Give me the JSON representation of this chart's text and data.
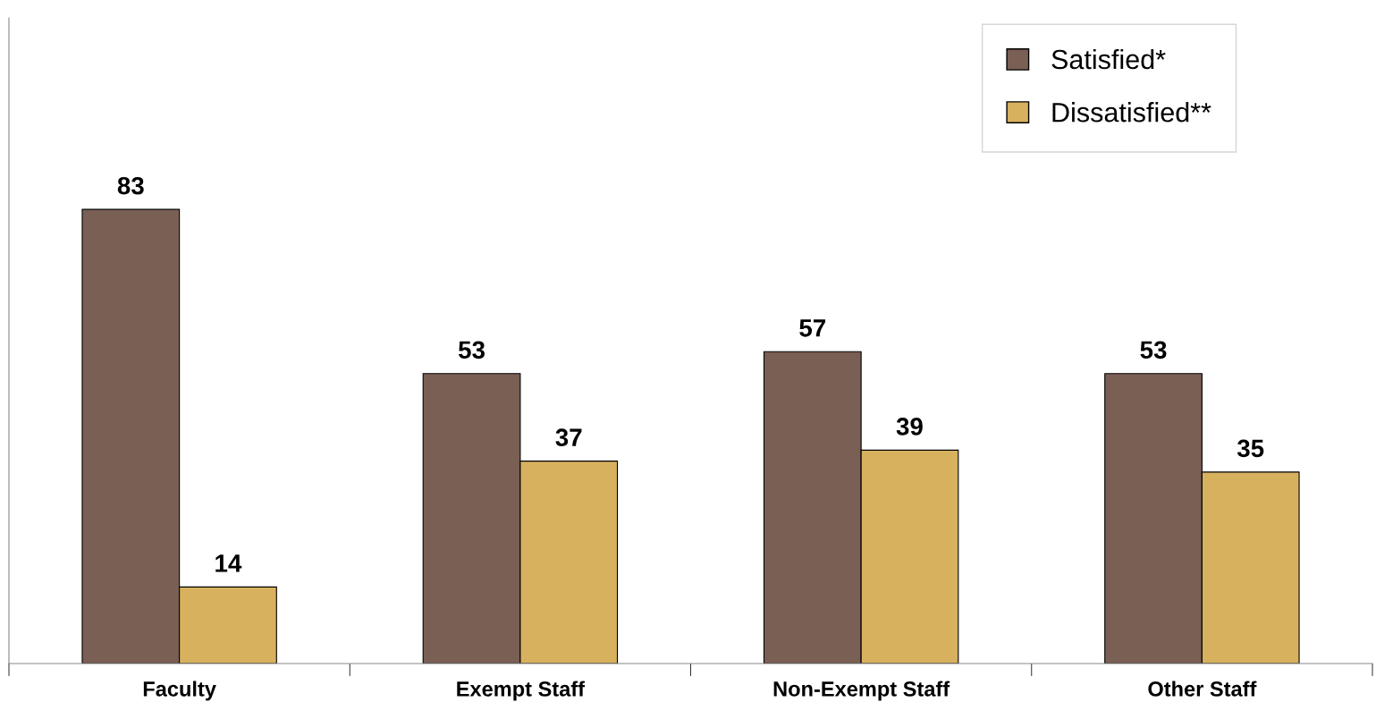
{
  "chart_data": {
    "type": "bar",
    "categories": [
      "Faculty",
      "Exempt Staff",
      "Non-Exempt Staff",
      "Other Staff"
    ],
    "series": [
      {
        "name": "Satisfied*",
        "color": "#7a5f55",
        "values": [
          83,
          53,
          57,
          53
        ]
      },
      {
        "name": "Dissatisfied**",
        "color": "#d8b15f",
        "values": [
          14,
          37,
          39,
          35
        ]
      }
    ],
    "ylim": [
      0,
      118
    ],
    "tick_labels": "x",
    "data_labels": true,
    "grid": false,
    "legend": "top right"
  }
}
